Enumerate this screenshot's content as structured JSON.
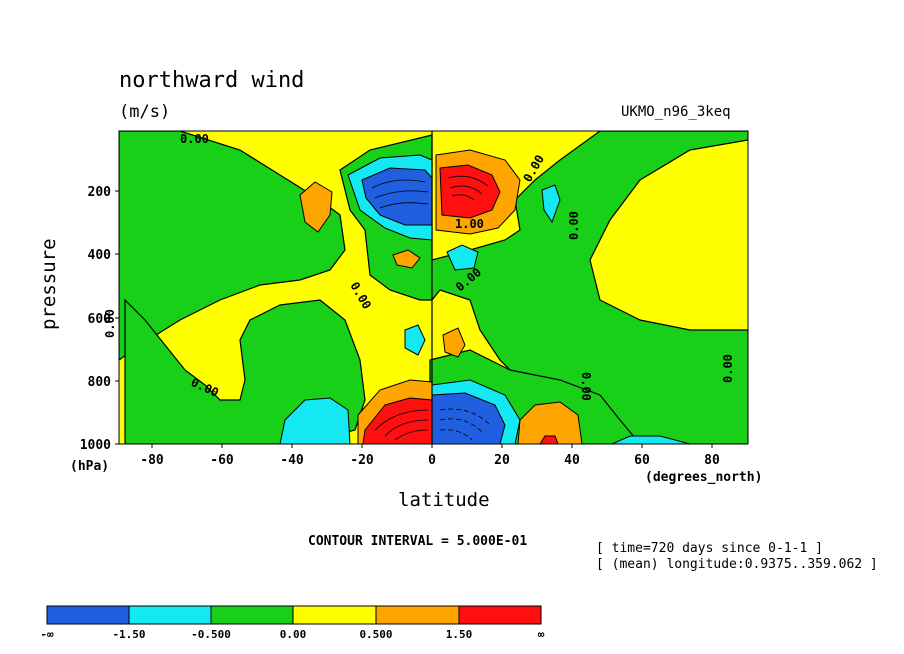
{
  "chart_data": {
    "type": "heatmap",
    "title": "northward wind",
    "units": "(m/s)",
    "model_label": "UKMO_n96_3keq",
    "xlabel": "latitude",
    "x_units": "(degrees_north)",
    "ylabel": "pressure",
    "y_units": "(hPa)",
    "xlim": [
      -90,
      90
    ],
    "ylim": [
      1000,
      0
    ],
    "x_ticks": [
      -80,
      -60,
      -40,
      -20,
      0,
      20,
      40,
      60,
      80
    ],
    "x_tick_labels": [
      "-80",
      "-60",
      "-40",
      "-20",
      "0",
      "20",
      "40",
      "60",
      "80"
    ],
    "y_ticks": [
      200,
      400,
      600,
      800,
      1000
    ],
    "y_tick_labels": [
      "200",
      "400",
      "600",
      "800",
      "1000"
    ],
    "contour_interval_label": "CONTOUR INTERVAL = 5.000E-01",
    "time_label": "[ time=720 days since 0-1-1 ]",
    "longitude_label": "[ (mean) longitude:0.9375..359.062 ]",
    "contour_labels": [
      "0.00",
      "0.00",
      "0.00",
      "0.00",
      "0.00",
      "0.00",
      "0.00",
      "0.00",
      "0.00",
      "1.00"
    ],
    "colorbar": {
      "levels": [
        "-∞",
        "-1.50",
        "-0.500",
        "0.00",
        "0.500",
        "1.50",
        "∞"
      ],
      "colors": [
        "#1f5fe0",
        "#14e8f0",
        "#18d018",
        "#ffff00",
        "#ffa500",
        "#ff1010"
      ]
    },
    "regions": [
      {
        "label": "negative jet core",
        "lat": -8,
        "p": 210,
        "value": -2.5
      },
      {
        "label": "positive jet core",
        "lat": 8,
        "p": 210,
        "value": 3.0
      },
      {
        "label": "negative surface core",
        "lat": 8,
        "p": 930,
        "value": -3.0
      },
      {
        "label": "positive surface core",
        "lat": -8,
        "p": 930,
        "value": 3.5
      },
      {
        "label": "subtropical positive",
        "lat": 32,
        "p": 960,
        "value": 1.5
      },
      {
        "label": "subtropical negative",
        "lat": -33,
        "p": 940,
        "value": -1.0
      }
    ]
  }
}
